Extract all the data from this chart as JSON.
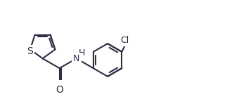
{
  "background_color": "#ffffff",
  "line_color": "#2d2d44",
  "line_width": 1.5,
  "font_size_S": 10,
  "font_size_O": 10,
  "font_size_H": 9,
  "font_size_Cl": 9,
  "xlim": [
    0.2,
    4.6
  ],
  "ylim": [
    0.05,
    1.25
  ],
  "figsize": [
    3.23,
    1.41
  ],
  "dpi": 100
}
